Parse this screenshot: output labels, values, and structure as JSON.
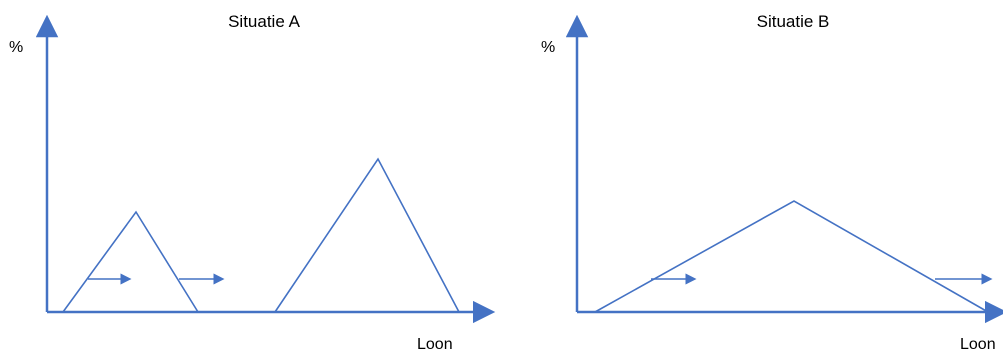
{
  "colors": {
    "line": "#4472c4",
    "text": "#000000",
    "background": "#ffffff"
  },
  "panels": [
    {
      "title": "Situatie A",
      "y_axis_label": "%",
      "x_axis_label": "Loon"
    },
    {
      "title": "Situatie B",
      "y_axis_label": "%",
      "x_axis_label": "Loon"
    }
  ]
}
